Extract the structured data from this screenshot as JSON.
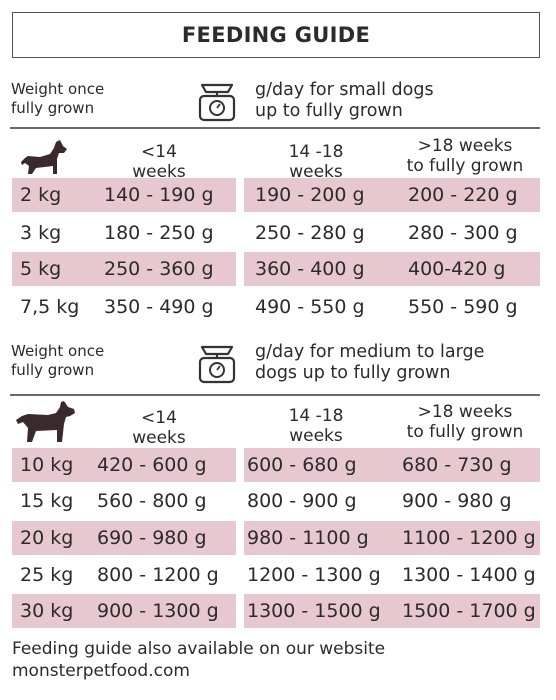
{
  "title": "FEEDING GUIDE",
  "small": {
    "weight_label_1": "Weight once",
    "weight_label_2": "fully grown",
    "desc_1": "g/day for small dogs",
    "desc_2": "up to fully grown",
    "headers": [
      {
        "l1": "<14",
        "l2": "weeks"
      },
      {
        "l1": "14 -18",
        "l2": "weeks"
      },
      {
        "l1": ">18 weeks",
        "l2": "to fully grown"
      }
    ],
    "rows": [
      {
        "weight": "2 kg",
        "c1": "140 - 190 g",
        "c2": "190 - 200 g",
        "c3": "200 - 220 g"
      },
      {
        "weight": "3 kg",
        "c1": "180 - 250 g",
        "c2": "250 - 280 g",
        "c3": "280 - 300 g"
      },
      {
        "weight": "5 kg",
        "c1": "250 - 360 g",
        "c2": "360 - 400 g",
        "c3": "400-420 g"
      },
      {
        "weight": "7,5 kg",
        "c1": "350 - 490 g",
        "c2": "490 - 550 g",
        "c3": "550 - 590 g"
      }
    ]
  },
  "large": {
    "weight_label_1": "Weight once",
    "weight_label_2": "fully grown",
    "desc_1": "g/day for medium to large",
    "desc_2": "dogs up to fully grown",
    "headers": [
      {
        "l1": "<14",
        "l2": "weeks"
      },
      {
        "l1": "14 -18",
        "l2": "weeks"
      },
      {
        "l1": ">18 weeks",
        "l2": "to fully grown"
      }
    ],
    "rows": [
      {
        "weight": "10 kg",
        "c1": "420 - 600 g",
        "c2": "600 - 680 g",
        "c3": "680 - 730 g"
      },
      {
        "weight": "15 kg",
        "c1": "560 - 800 g",
        "c2": "800 - 900 g",
        "c3": "900 - 980 g"
      },
      {
        "weight": "20 kg",
        "c1": "690 - 980 g",
        "c2": "980 - 1100 g",
        "c3": "1100 - 1200 g"
      },
      {
        "weight": "25 kg",
        "c1": "800 - 1200 g",
        "c2": "1200 - 1300 g",
        "c3": "1300 - 1400 g"
      },
      {
        "weight": "30 kg",
        "c1": "900 - 1300 g",
        "c2": "1300 - 1500 g",
        "c3": "1500 - 1700 g"
      }
    ]
  },
  "footer": {
    "line1": "Feeding guide also available on our website",
    "line2": "monsterpetfood.com"
  },
  "colors": {
    "row_highlight": "#e8c8d0",
    "text": "#2b2a2e",
    "dog": "#3a2a2e"
  },
  "icons": {
    "scale": "kitchen-scale-icon",
    "small_dog": "small-dog-icon",
    "large_dog": "large-dog-icon"
  }
}
